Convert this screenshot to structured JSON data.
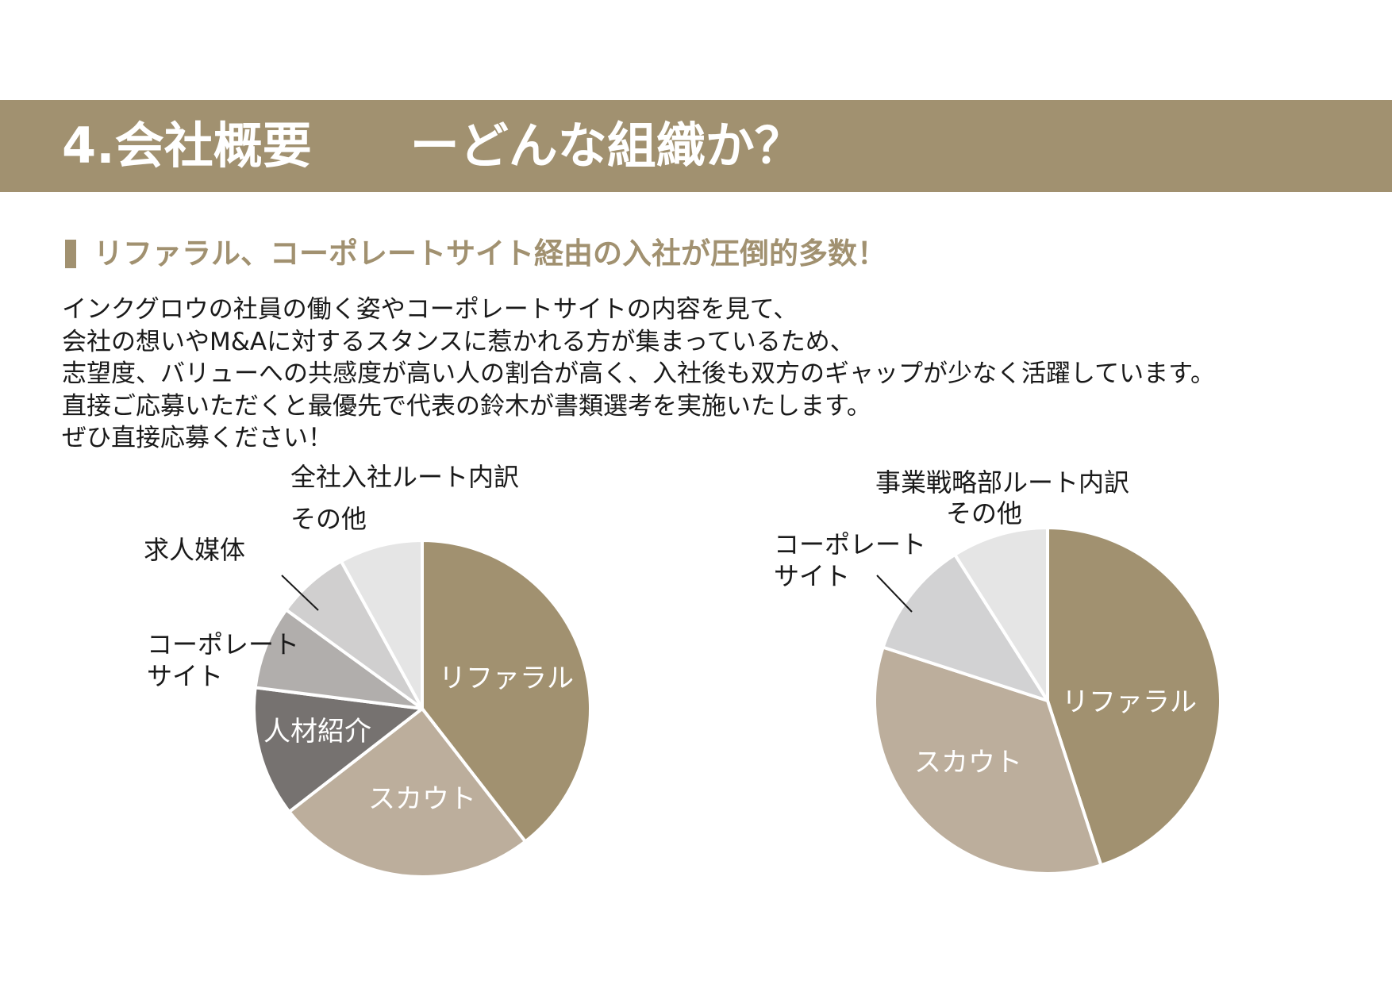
{
  "header": {
    "title": "4.会社概要　　ーどんな組織か？"
  },
  "section": {
    "heading": "リファラル、コーポレートサイト経由の入社が圧倒的多数！",
    "body_lines": [
      "インクグロウの社員の働く姿やコーポレートサイトの内容を見て、",
      "会社の想いやM&Aに対するスタンスに惹かれる方が集まっているため、",
      "志望度、バリューへの共感度が高い人の割合が高く、入社後も双方のギャップが少なく活躍しています。",
      "直接ご応募いただくと最優先で代表の鈴木が書類選考を実施いたします。",
      "ぜひ直接応募ください！"
    ]
  },
  "colors": {
    "accent": "#a19170",
    "heading": "#a19170"
  },
  "chart_data": [
    {
      "type": "pie",
      "title": "全社入社ルート内訳",
      "slices": [
        {
          "label": "リファラル",
          "value": 39.5,
          "color": "#a19170"
        },
        {
          "label": "スカウト",
          "value": 25,
          "color": "#bcae9c"
        },
        {
          "label": "人材紹介",
          "value": 12.5,
          "color": "#767270"
        },
        {
          "label": "コーポレート\nサイト",
          "value": 8,
          "color": "#b1aeac"
        },
        {
          "label": "求人媒体",
          "value": 7,
          "color": "#d0cfcf"
        },
        {
          "label": "その他",
          "value": 8,
          "color": "#e5e5e5"
        }
      ]
    },
    {
      "type": "pie",
      "title": "事業戦略部ルート内訳",
      "slices": [
        {
          "label": "リファラル",
          "value": 45,
          "color": "#a19170"
        },
        {
          "label": "スカウト",
          "value": 35,
          "color": "#bcae9c"
        },
        {
          "label": "コーポレート\nサイト",
          "value": 11,
          "color": "#d2d2d3"
        },
        {
          "label": "その他",
          "value": 9,
          "color": "#e5e5e5"
        }
      ]
    }
  ]
}
